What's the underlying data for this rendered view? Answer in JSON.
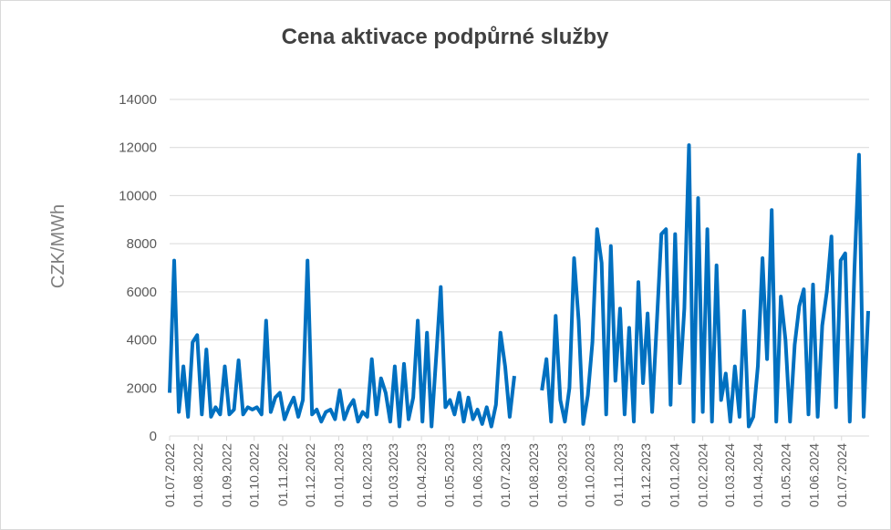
{
  "chart_data": {
    "type": "line",
    "title": "Cena aktivace podpůrné služby",
    "y_label": "CZK/MWh",
    "x": [
      "01.07.2022",
      "06.07.2022",
      "11.07.2022",
      "16.07.2022",
      "21.07.2022",
      "26.07.2022",
      "31.07.2022",
      "05.08.2022",
      "10.08.2022",
      "15.08.2022",
      "20.08.2022",
      "25.08.2022",
      "30.08.2022",
      "04.09.2022",
      "09.09.2022",
      "14.09.2022",
      "19.09.2022",
      "24.09.2022",
      "29.09.2022",
      "04.10.2022",
      "09.10.2022",
      "14.10.2022",
      "19.10.2022",
      "24.10.2022",
      "29.10.2022",
      "03.11.2022",
      "08.11.2022",
      "13.11.2022",
      "18.11.2022",
      "23.11.2022",
      "28.11.2022",
      "03.12.2022",
      "08.12.2022",
      "13.12.2022",
      "18.12.2022",
      "23.12.2022",
      "28.12.2022",
      "02.01.2023",
      "07.01.2023",
      "12.01.2023",
      "17.01.2023",
      "22.01.2023",
      "27.01.2023",
      "01.02.2023",
      "06.02.2023",
      "11.02.2023",
      "16.02.2023",
      "21.02.2023",
      "26.02.2023",
      "03.03.2023",
      "08.03.2023",
      "13.03.2023",
      "18.03.2023",
      "23.03.2023",
      "28.03.2023",
      "02.04.2023",
      "07.04.2023",
      "12.04.2023",
      "17.04.2023",
      "22.04.2023",
      "27.04.2023",
      "02.05.2023",
      "07.05.2023",
      "12.05.2023",
      "17.05.2023",
      "22.05.2023",
      "27.05.2023",
      "01.06.2023",
      "06.06.2023",
      "11.06.2023",
      "16.06.2023",
      "21.06.2023",
      "26.06.2023",
      "01.07.2023",
      "06.07.2023",
      "11.07.2023",
      "16.07.2023",
      "10.08.2023",
      "15.08.2023",
      "20.08.2023",
      "25.08.2023",
      "30.08.2023",
      "04.09.2023",
      "09.09.2023",
      "14.09.2023",
      "19.09.2023",
      "24.09.2023",
      "29.09.2023",
      "04.10.2023",
      "09.10.2023",
      "14.10.2023",
      "19.10.2023",
      "24.10.2023",
      "29.10.2023",
      "03.11.2023",
      "08.11.2023",
      "13.11.2023",
      "18.11.2023",
      "23.11.2023",
      "28.11.2023",
      "03.12.2023",
      "08.12.2023",
      "13.12.2023",
      "18.12.2023",
      "23.12.2023",
      "28.12.2023",
      "02.01.2024",
      "07.01.2024",
      "12.01.2024",
      "17.01.2024",
      "22.01.2024",
      "27.01.2024",
      "01.02.2024",
      "06.02.2024",
      "11.02.2024",
      "16.02.2024",
      "21.02.2024",
      "26.02.2024",
      "02.03.2024",
      "07.03.2024",
      "12.03.2024",
      "17.03.2024",
      "22.03.2024",
      "27.03.2024",
      "01.04.2024",
      "06.04.2024",
      "11.04.2024",
      "16.04.2024",
      "21.04.2024",
      "26.04.2024",
      "01.05.2024",
      "06.05.2024",
      "11.05.2024",
      "16.05.2024",
      "21.05.2024",
      "26.05.2024",
      "31.05.2024",
      "05.06.2024",
      "10.06.2024",
      "15.06.2024",
      "20.06.2024",
      "25.06.2024",
      "30.06.2024",
      "05.07.2024",
      "10.07.2024",
      "15.07.2024",
      "20.07.2024",
      "25.07.2024",
      "30.07.2024"
    ],
    "series": [
      {
        "name": "CZK/MWh",
        "color": "#0070c0",
        "values": [
          1800,
          7300,
          1000,
          2900,
          800,
          3900,
          4200,
          900,
          3600,
          800,
          1200,
          900,
          2900,
          900,
          1100,
          3150,
          900,
          1200,
          1100,
          1200,
          900,
          4800,
          1000,
          1600,
          1800,
          700,
          1200,
          1600,
          800,
          1500,
          7300,
          900,
          1100,
          600,
          1000,
          1100,
          700,
          1900,
          700,
          1200,
          1500,
          600,
          1000,
          800,
          3200,
          900,
          2400,
          1800,
          600,
          2900,
          400,
          3000,
          700,
          1600,
          4800,
          600,
          4300,
          400,
          3300,
          6200,
          1200,
          1500,
          900,
          1800,
          600,
          1600,
          700,
          1100,
          500,
          1200,
          400,
          1300,
          4300,
          2900,
          800,
          2500,
          null,
          1900,
          3200,
          600,
          5000,
          1500,
          600,
          2000,
          7400,
          4800,
          500,
          1700,
          3900,
          8600,
          7200,
          900,
          7900,
          2300,
          5300,
          900,
          4500,
          600,
          6400,
          2200,
          5100,
          1000,
          4700,
          8400,
          8600,
          1300,
          8400,
          2200,
          5300,
          12100,
          600,
          9900,
          1000,
          8600,
          600,
          7100,
          1500,
          2600,
          600,
          2900,
          800,
          5200,
          400,
          800,
          2900,
          7400,
          3200,
          9400,
          600,
          5800,
          4000,
          600,
          3800,
          5400,
          6100,
          900,
          6300,
          800,
          4600,
          6000,
          8300,
          1200,
          7300,
          7600,
          600,
          6900,
          11700,
          800,
          5200
        ]
      }
    ],
    "xlim": [
      "01.07.2022",
      "31.07.2024"
    ],
    "xticks": [
      "01.07.2022",
      "01.08.2022",
      "01.09.2022",
      "01.10.2022",
      "01.11.2022",
      "01.12.2022",
      "01.01.2023",
      "01.02.2023",
      "01.03.2023",
      "01.04.2023",
      "01.05.2023",
      "01.06.2023",
      "01.07.2023",
      "01.08.2023",
      "01.09.2023",
      "01.10.2023",
      "01.11.2023",
      "01.12.2023",
      "01.01.2024",
      "01.02.2024",
      "01.03.2024",
      "01.04.2024",
      "01.05.2024",
      "01.06.2024",
      "01.07.2024"
    ],
    "ylim": [
      0,
      14000
    ],
    "yticks": [
      0,
      2000,
      4000,
      6000,
      8000,
      10000,
      12000,
      14000
    ],
    "grid": true
  }
}
